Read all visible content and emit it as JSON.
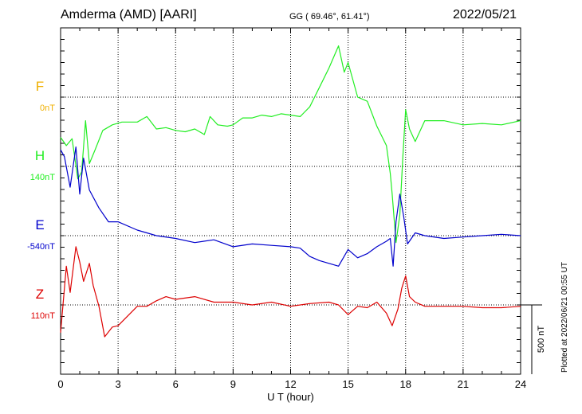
{
  "header": {
    "station": "Amderma (AMD)  [AARI]",
    "coords": "GG ( 69.46°,  61.41°)",
    "date": "2022/05/21"
  },
  "side_note": "Plotted at 2022/06/21 00:55 UT",
  "scale_label": "500 nT",
  "colors": {
    "F": "#f0b000",
    "H": "#22ee22",
    "E": "#0000cc",
    "Z": "#dd0000",
    "ref": "#000000"
  },
  "chart_data": {
    "type": "line",
    "xlabel": "U T (hour)",
    "xlim": [
      0,
      24
    ],
    "xticks": [
      "0",
      "3",
      "6",
      "9",
      "12",
      "15",
      "18",
      "21",
      "24"
    ],
    "grid": true,
    "series": [
      {
        "key": "F",
        "name": "F",
        "baseline": "0nT",
        "values": []
      },
      {
        "key": "H",
        "name": "H",
        "baseline": "140nT",
        "x": [
          0,
          0.3,
          0.6,
          0.9,
          1.1,
          1.3,
          1.5,
          1.8,
          2.2,
          2.7,
          3.2,
          4.0,
          4.5,
          5.0,
          5.5,
          6.0,
          6.5,
          7.0,
          7.5,
          7.8,
          8.2,
          8.7,
          9.0,
          9.5,
          10.0,
          10.5,
          11.0,
          11.5,
          12.0,
          12.5,
          13.0,
          13.5,
          14.0,
          14.5,
          14.8,
          15.0,
          15.5,
          16.0,
          16.5,
          17.0,
          17.2,
          17.3,
          17.5,
          17.7,
          17.85,
          18.0,
          18.2,
          18.5,
          19.0,
          20.0,
          21.0,
          22.0,
          23.0,
          24.0
        ],
        "values": [
          210,
          150,
          200,
          -90,
          -40,
          330,
          20,
          120,
          260,
          300,
          320,
          320,
          360,
          270,
          280,
          260,
          250,
          270,
          230,
          360,
          300,
          290,
          300,
          350,
          350,
          370,
          360,
          380,
          370,
          360,
          430,
          570,
          710,
          870,
          680,
          750,
          500,
          470,
          290,
          150,
          -50,
          -200,
          -550,
          -350,
          50,
          410,
          270,
          180,
          330,
          330,
          300,
          310,
          300,
          330
        ]
      },
      {
        "key": "E",
        "name": "E",
        "baseline": "-540nT",
        "x": [
          0,
          0.2,
          0.5,
          0.8,
          1.0,
          1.2,
          1.5,
          2.0,
          2.5,
          3.0,
          4.0,
          5.0,
          6.0,
          7.0,
          8.0,
          9.0,
          10.0,
          11.0,
          12.0,
          12.5,
          13.0,
          13.5,
          14.0,
          14.5,
          15.0,
          15.5,
          16.0,
          16.5,
          17.0,
          17.2,
          17.35,
          17.5,
          17.7,
          17.9,
          18.1,
          18.5,
          19.0,
          20.0,
          21.0,
          22.0,
          23.0,
          24.0
        ],
        "values": [
          620,
          570,
          350,
          640,
          300,
          560,
          330,
          200,
          100,
          100,
          40,
          0,
          -20,
          -50,
          -30,
          -80,
          -60,
          -70,
          -80,
          -90,
          -150,
          -180,
          -200,
          -220,
          -100,
          -160,
          -130,
          -80,
          -40,
          -20,
          -220,
          100,
          300,
          140,
          -60,
          20,
          0,
          -20,
          -10,
          0,
          10,
          0
        ]
      },
      {
        "key": "Z",
        "name": "Z",
        "baseline": "110nT",
        "x": [
          0,
          0.3,
          0.5,
          0.8,
          1.0,
          1.2,
          1.5,
          1.7,
          2.0,
          2.3,
          2.7,
          3.0,
          3.5,
          4.0,
          4.5,
          5.0,
          5.5,
          6.0,
          7.0,
          8.0,
          9.0,
          10.0,
          11.0,
          12.0,
          13.0,
          14.0,
          14.5,
          15.0,
          15.5,
          16.0,
          16.5,
          17.0,
          17.3,
          17.6,
          17.8,
          18.0,
          18.2,
          18.5,
          19.0,
          20.0,
          21.0,
          22.0,
          23.0,
          24.0
        ],
        "values": [
          -200,
          280,
          90,
          420,
          310,
          170,
          300,
          140,
          -10,
          -230,
          -160,
          -150,
          -80,
          -10,
          -10,
          30,
          60,
          40,
          60,
          20,
          20,
          0,
          20,
          -10,
          10,
          20,
          0,
          -70,
          -10,
          -20,
          20,
          -60,
          -150,
          -30,
          120,
          210,
          60,
          20,
          -10,
          -10,
          -10,
          -20,
          -20,
          -10
        ]
      }
    ]
  }
}
